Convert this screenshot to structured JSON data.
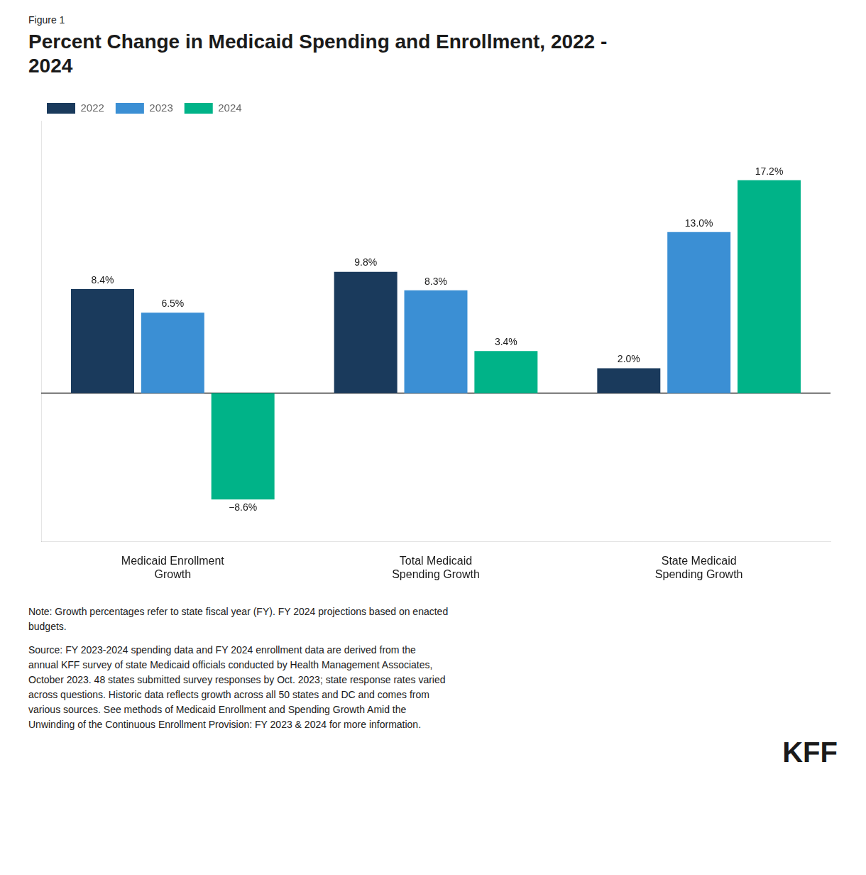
{
  "chart_data": {
    "type": "bar",
    "subtitle": "Figure 1",
    "title": "Percent Change in Medicaid Spending and Enrollment, 2022 -\n2024",
    "categories": [
      "Medicaid Enrollment\nGrowth",
      "Total Medicaid\nSpending Growth",
      "State Medicaid\nSpending Growth"
    ],
    "series": [
      {
        "name": "2022",
        "color": "#1a3a5c",
        "values": [
          8.4,
          9.8,
          2.0
        ],
        "value_labels": [
          "8.4%",
          "9.8%",
          "2.0%"
        ]
      },
      {
        "name": "2023",
        "color": "#3b8fd4",
        "values": [
          6.5,
          8.3,
          13.0
        ],
        "value_labels": [
          "6.5%",
          "8.3%",
          "13.0%"
        ]
      },
      {
        "name": "2024",
        "color": "#00b388",
        "values": [
          -8.6,
          3.4,
          17.2
        ],
        "value_labels": [
          "−8.6%",
          "3.4%",
          "17.2%"
        ]
      }
    ],
    "ylim": [
      -12,
      22
    ],
    "grid": false,
    "legend": "top",
    "data_labels": true,
    "tick_labels": "x",
    "annotations": [
      "Note: Growth percentages refer to state fiscal year (FY). FY 2024 projections based on enacted\nbudgets.",
      "Source: FY 2023-2024 spending data and FY 2024 enrollment data are derived from the\nannual KFF survey of state Medicaid officials conducted by Health Management Associates,\nOctober 2023. 48 states submitted survey responses by Oct. 2023; state response rates varied\nacross questions. Historic data reflects growth across all 50 states and DC and comes from\nvarious sources. See methods of Medicaid Enrollment and Spending Growth Amid the\nUnwinding of the Continuous Enrollment Provision: FY 2023 & 2024 for more information.",
      "KFF"
    ]
  }
}
